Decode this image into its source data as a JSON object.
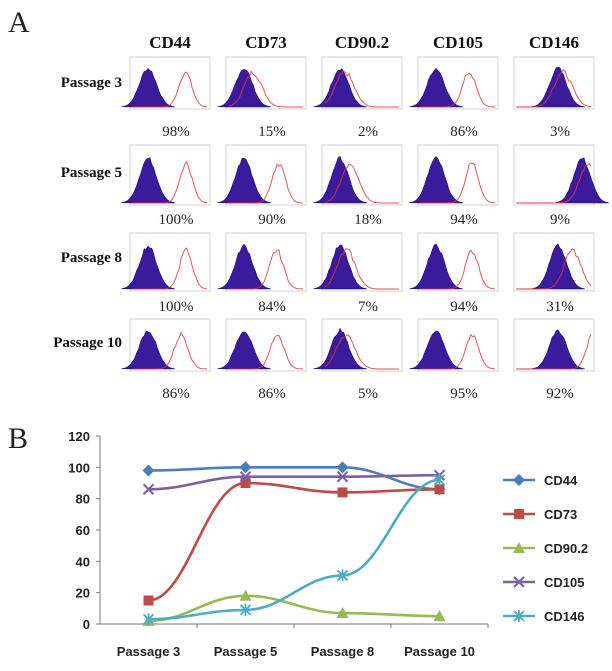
{
  "panel_a": {
    "letter": "A",
    "markers": [
      "CD44",
      "CD73",
      "CD90.2",
      "CD105",
      "CD146"
    ],
    "passages": [
      {
        "label": "Passage 3",
        "percents": [
          "98%",
          "15%",
          "2%",
          "86%",
          "3%"
        ]
      },
      {
        "label": "Passage 5",
        "percents": [
          "100%",
          "90%",
          "18%",
          "94%",
          "9%"
        ]
      },
      {
        "label": "Passage 8",
        "percents": [
          "100%",
          "84%",
          "7%",
          "94%",
          "31%"
        ]
      },
      {
        "label": "Passage 10",
        "percents": [
          "86%",
          "86%",
          "5%",
          "95%",
          "92%"
        ]
      }
    ],
    "control_color": "#3b1b9c",
    "sample_color": "#e0383b"
  },
  "panel_b": {
    "letter": "B"
  },
  "chart_data": {
    "type": "line",
    "categories": [
      "Passage 3",
      "Passage 5",
      "Passage 8",
      "Passage 10"
    ],
    "ylim": [
      0,
      120
    ],
    "yticks": [
      0,
      20,
      40,
      60,
      80,
      100,
      120
    ],
    "grid": false,
    "legend_position": "right",
    "series": [
      {
        "name": "CD44",
        "values": [
          98,
          100,
          100,
          86
        ],
        "color": "#4a7ebb",
        "marker": "diamond"
      },
      {
        "name": "CD73",
        "values": [
          15,
          90,
          84,
          86
        ],
        "color": "#be4b48",
        "marker": "square"
      },
      {
        "name": "CD90.2",
        "values": [
          2,
          18,
          7,
          5
        ],
        "color": "#98b954",
        "marker": "triangle"
      },
      {
        "name": "CD105",
        "values": [
          86,
          94,
          94,
          95
        ],
        "color": "#7d60a0",
        "marker": "x"
      },
      {
        "name": "CD146",
        "values": [
          3,
          9,
          31,
          92
        ],
        "color": "#4bacc6",
        "marker": "star"
      }
    ]
  }
}
